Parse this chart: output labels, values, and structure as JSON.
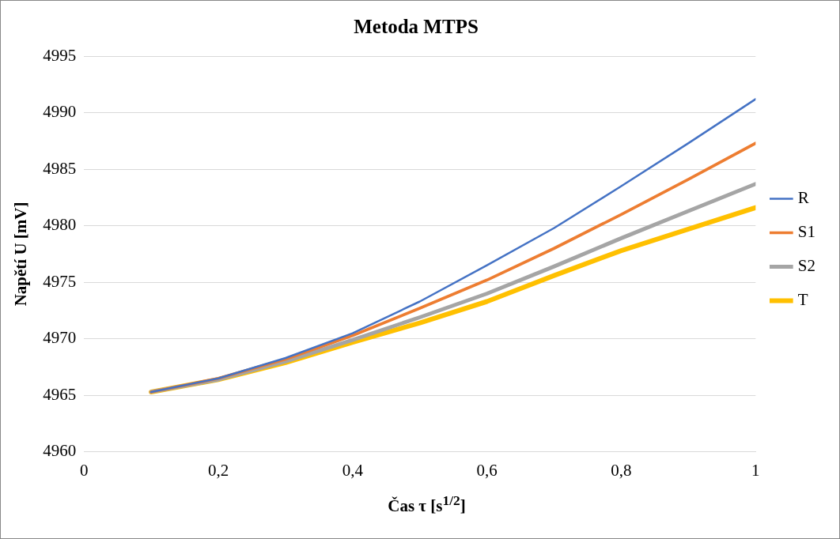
{
  "chart_data": {
    "type": "line",
    "title": "Metoda MTPS",
    "xlabel": "Čas τ [s$^{1/2}$]",
    "ylabel": "Napětí U [mV]",
    "x": [
      0.1,
      0.2,
      0.3,
      0.4,
      0.5,
      0.6,
      0.7,
      0.8,
      0.9,
      1
    ],
    "series": [
      {
        "name": "R",
        "color": "#4472c4",
        "values": [
          4965.3,
          4966.5,
          4968.3,
          4970.5,
          4973.3,
          4976.5,
          4979.8,
          4983.5,
          4987.3,
          4991.2
        ]
      },
      {
        "name": "S1",
        "color": "#ed7d31",
        "values": [
          4965.3,
          4966.5,
          4968.2,
          4970.3,
          4972.7,
          4975.2,
          4978.0,
          4981.0,
          4984.1,
          4987.3
        ]
      },
      {
        "name": "S2",
        "color": "#a5a5a5",
        "values": [
          4965.3,
          4966.4,
          4968.0,
          4969.9,
          4971.9,
          4974.0,
          4976.4,
          4978.9,
          4981.3,
          4983.7
        ]
      },
      {
        "name": "T",
        "color": "#ffc000",
        "values": [
          4965.3,
          4966.4,
          4967.9,
          4969.7,
          4971.4,
          4973.3,
          4975.6,
          4977.8,
          4979.7,
          4981.6
        ]
      }
    ],
    "xlim": [
      0,
      1
    ],
    "xticks": [
      0,
      {
        "value": 0.2,
        "label": "0,2"
      },
      {
        "value": 0.4,
        "label": "0,4"
      },
      {
        "value": 0.6,
        "label": "0,6"
      },
      {
        "value": 0.8,
        "label": "0,8"
      },
      1
    ],
    "ylim": [
      4960,
      4995
    ],
    "yticks": [
      4960,
      4965,
      4970,
      4975,
      4980,
      4985,
      4990,
      4995
    ],
    "grid": "y",
    "legend": "right",
    "marker": "none",
    "line_style": "solid"
  }
}
